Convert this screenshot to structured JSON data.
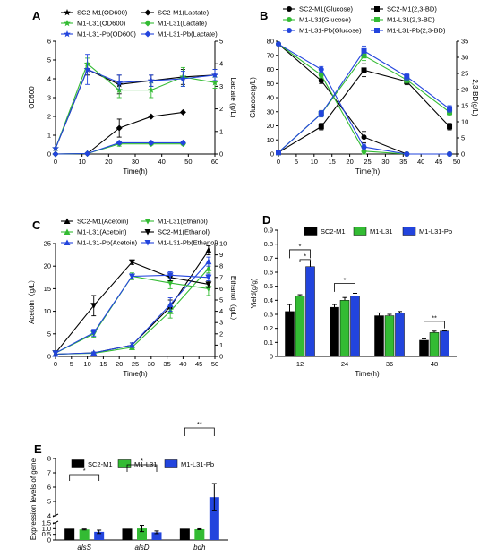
{
  "chart_data": [
    {
      "id": "A",
      "type": "line",
      "letter": "A",
      "xlabel": "Time(h)",
      "ylabel_left": "OD600",
      "ylabel_right": "Lactate (g/L)",
      "xlim": [
        0,
        60
      ],
      "xticks": [
        "0",
        "10",
        "20",
        "30",
        "40",
        "50",
        "60"
      ],
      "ylim_left": [
        0,
        6
      ],
      "yticks_left": [
        "0",
        "1",
        "2",
        "3",
        "4",
        "5",
        "6"
      ],
      "ylim_right": [
        0,
        5
      ],
      "yticks_right": [
        "0",
        "1",
        "2",
        "3",
        "4",
        "5"
      ],
      "series": [
        {
          "name": "SC2-M1(OD600)",
          "axis": "left",
          "color": "#000000",
          "marker": "star",
          "x": [
            0,
            12,
            24,
            36,
            48,
            60
          ],
          "y": [
            0.3,
            4.5,
            3.7,
            3.9,
            4.1,
            4.2
          ],
          "err": [
            0,
            0.3,
            0.5,
            0.3,
            0.4,
            0.3
          ]
        },
        {
          "name": "SC2-M1(Lactate)",
          "axis": "right",
          "color": "#000000",
          "marker": "diamond",
          "x": [
            0,
            12,
            24,
            36,
            48
          ],
          "y": [
            0,
            0.02,
            1.15,
            1.66,
            1.85
          ],
          "err": [
            0,
            0,
            0.4,
            0,
            0
          ]
        },
        {
          "name": "M1-L31(OD600)",
          "axis": "left",
          "color": "#33bb33",
          "marker": "star",
          "x": [
            0,
            12,
            24,
            36,
            48,
            60
          ],
          "y": [
            0.3,
            4.8,
            3.4,
            3.4,
            4.1,
            3.8
          ],
          "err": [
            0,
            0.3,
            0.4,
            0.4,
            0.5,
            0.3
          ]
        },
        {
          "name": "M1-L31(Lactate)",
          "axis": "right",
          "color": "#33bb33",
          "marker": "diamond",
          "x": [
            0,
            12,
            24,
            36,
            48
          ],
          "y": [
            0,
            0.02,
            0.45,
            0.45,
            0.45
          ],
          "err": [
            0,
            0,
            0.1,
            0.05,
            0.05
          ]
        },
        {
          "name": "M1-L31-Pb(OD600)",
          "axis": "left",
          "color": "#2244dd",
          "marker": "star",
          "x": [
            0,
            12,
            24,
            36,
            48,
            60
          ],
          "y": [
            0.3,
            4.5,
            3.8,
            3.9,
            4.0,
            4.2
          ],
          "err": [
            0,
            0.8,
            0.4,
            0.3,
            0.4,
            0.3
          ]
        },
        {
          "name": "M1-L31-Pb(Lactate)",
          "axis": "right",
          "color": "#2244dd",
          "marker": "diamond",
          "x": [
            0,
            12,
            24,
            36,
            48
          ],
          "y": [
            0,
            0.02,
            0.5,
            0.5,
            0.5
          ],
          "err": [
            0,
            0,
            0.05,
            0.05,
            0.05
          ]
        }
      ]
    },
    {
      "id": "B",
      "type": "line",
      "letter": "B",
      "xlabel": "Time(h)",
      "ylabel_left": "Glucose(g/L)",
      "ylabel_right": "2,3-BD(g/L)",
      "xlim": [
        0,
        50
      ],
      "xticks": [
        "0",
        "5",
        "10",
        "15",
        "20",
        "25",
        "30",
        "35",
        "40",
        "45",
        "50"
      ],
      "ylim_left": [
        0,
        80
      ],
      "yticks_left": [
        "0",
        "10",
        "20",
        "30",
        "40",
        "50",
        "60",
        "70",
        "80"
      ],
      "ylim_right": [
        0,
        35
      ],
      "yticks_right": [
        "0",
        "5",
        "10",
        "15",
        "20",
        "25",
        "30",
        "35"
      ],
      "series": [
        {
          "name": "SC2-M1(Glucose)",
          "axis": "left",
          "color": "#000000",
          "marker": "circle",
          "x": [
            0,
            12,
            24,
            36,
            48
          ],
          "y": [
            78,
            52,
            12,
            0,
            0
          ],
          "err": [
            0,
            2,
            4,
            0,
            0
          ]
        },
        {
          "name": "SC2-M1(2,3-BD)",
          "axis": "right",
          "color": "#000000",
          "marker": "square",
          "x": [
            0,
            12,
            24,
            36,
            48
          ],
          "y": [
            0.5,
            8.5,
            26,
            22.5,
            8.5
          ],
          "err": [
            0,
            1,
            2,
            1,
            1
          ]
        },
        {
          "name": "M1-L31(Glucose)",
          "axis": "left",
          "color": "#33bb33",
          "marker": "circle",
          "x": [
            0,
            12,
            24,
            36,
            48
          ],
          "y": [
            78,
            56,
            2,
            0,
            0
          ],
          "err": [
            0,
            2,
            2,
            0,
            0
          ]
        },
        {
          "name": "M1-L31(2,3-BD)",
          "axis": "right",
          "color": "#33bb33",
          "marker": "square",
          "x": [
            0,
            12,
            24,
            36,
            48
          ],
          "y": [
            0.5,
            12.5,
            30.5,
            23,
            13
          ],
          "err": [
            0,
            1,
            1.5,
            1,
            1
          ]
        },
        {
          "name": "M1-L31-Pb(Glucose)",
          "axis": "left",
          "color": "#2244dd",
          "marker": "circle",
          "x": [
            0,
            12,
            24,
            36,
            48
          ],
          "y": [
            78,
            60,
            5,
            0,
            0
          ],
          "err": [
            0,
            2,
            2,
            0,
            0
          ]
        },
        {
          "name": "M1-L31-Pb(2,3-BD)",
          "axis": "right",
          "color": "#2244dd",
          "marker": "square",
          "x": [
            0,
            12,
            24,
            36,
            48
          ],
          "y": [
            0.5,
            12.5,
            32,
            24,
            14
          ],
          "err": [
            0,
            1,
            1.5,
            1,
            1
          ]
        }
      ]
    },
    {
      "id": "C",
      "type": "line",
      "letter": "C",
      "xlabel": "Time(h)",
      "ylabel_left": "Acetoin（g/L）",
      "ylabel_right": "Ethanol（g/L）",
      "xlim": [
        0,
        50
      ],
      "xticks": [
        "0",
        "5",
        "10",
        "15",
        "20",
        "25",
        "30",
        "35",
        "40",
        "45",
        "50"
      ],
      "ylim_left": [
        0,
        25
      ],
      "yticks_left": [
        "0",
        "5",
        "10",
        "15",
        "20",
        "25"
      ],
      "ylim_right": [
        0,
        10
      ],
      "yticks_right": [
        "0",
        "1",
        "2",
        "3",
        "4",
        "5",
        "6",
        "7",
        "8",
        "9",
        "10"
      ],
      "series": [
        {
          "name": "SC2-M1(Acetoin)",
          "axis": "left",
          "color": "#000000",
          "marker": "triangle-up",
          "x": [
            0,
            12,
            24,
            36,
            48
          ],
          "y": [
            0.5,
            0.8,
            2.5,
            11,
            23.5
          ],
          "err": [
            0,
            0.2,
            0.5,
            1.5,
            1
          ]
        },
        {
          "name": "M1-L31(Acetoin)",
          "axis": "left",
          "color": "#33bb33",
          "marker": "triangle-up",
          "x": [
            0,
            12,
            24,
            36,
            48
          ],
          "y": [
            0.5,
            0.7,
            2,
            10,
            19.5
          ],
          "err": [
            0,
            0.2,
            0.5,
            1.5,
            1
          ]
        },
        {
          "name": "M1-L31-Pb(Acetoin)",
          "axis": "left",
          "color": "#2244dd",
          "marker": "triangle-up",
          "x": [
            0,
            12,
            24,
            36,
            48
          ],
          "y": [
            0.5,
            0.8,
            2.5,
            11.5,
            21
          ],
          "err": [
            0,
            0.2,
            0.5,
            1.5,
            1
          ]
        },
        {
          "name": "M1-L31(Ethanol)",
          "axis": "right",
          "color": "#33bb33",
          "marker": "triangle-down",
          "x": [
            0,
            12,
            24,
            36,
            48
          ],
          "y": [
            0.3,
            2,
            7.1,
            6.5,
            6
          ],
          "err": [
            0,
            0.3,
            0.3,
            0.5,
            0.6
          ]
        },
        {
          "name": "SC2-M1(Ethanol)",
          "axis": "right",
          "color": "#000000",
          "marker": "triangle-down",
          "x": [
            0,
            12,
            24,
            36,
            48
          ],
          "y": [
            0.3,
            4.5,
            8.35,
            7,
            6.4
          ],
          "err": [
            0,
            0.9,
            0.2,
            0.3,
            0.3
          ]
        },
        {
          "name": "M1-L31-Pb(Ethanol)",
          "axis": "right",
          "color": "#2244dd",
          "marker": "triangle-down",
          "x": [
            0,
            12,
            24,
            36,
            48
          ],
          "y": [
            0.3,
            2.1,
            7.1,
            7.2,
            7.0
          ],
          "err": [
            0,
            0.3,
            0.2,
            0.3,
            0.3
          ]
        }
      ]
    },
    {
      "id": "D",
      "type": "bar",
      "letter": "D",
      "xlabel": "Time(h)",
      "ylabel": "Yield(g/g)",
      "categories": [
        "12",
        "24",
        "36",
        "48"
      ],
      "ylim": [
        0,
        0.9
      ],
      "yticks": [
        "0",
        "0.1",
        "0.2",
        "0.3",
        "0.4",
        "0.5",
        "0.6",
        "0.7",
        "0.8",
        "0.9"
      ],
      "series": [
        {
          "name": "SC2-M1",
          "color": "#000000",
          "values": [
            0.32,
            0.35,
            0.29,
            0.115
          ],
          "err": [
            0.05,
            0.02,
            0.02,
            0.01
          ]
        },
        {
          "name": "M1-L31",
          "color": "#33bb33",
          "values": [
            0.43,
            0.4,
            0.29,
            0.17
          ],
          "err": [
            0.01,
            0.02,
            0.01,
            0.01
          ]
        },
        {
          "name": "M1-L31-Pb",
          "color": "#2244dd",
          "values": [
            0.64,
            0.43,
            0.31,
            0.18
          ],
          "err": [
            0.04,
            0.02,
            0.01,
            0.005
          ]
        }
      ],
      "annotations": [
        "*",
        "*",
        "*",
        "**"
      ]
    },
    {
      "id": "E",
      "type": "bar",
      "letter": "E",
      "ylabel": "Expression levels of gene",
      "categories": [
        "alsS",
        "alsD",
        "bdh"
      ],
      "yticks": [
        "0",
        "0.5",
        "1.0",
        "1.5",
        "4",
        "5",
        "6",
        "7",
        "8"
      ],
      "series": [
        {
          "name": "SC2-M1",
          "color": "#000000",
          "values": [
            1.0,
            1.0,
            1.0
          ],
          "err": [
            0,
            0,
            0
          ]
        },
        {
          "name": "M1-L31",
          "color": "#33bb33",
          "values": [
            0.93,
            1.02,
            0.95
          ],
          "err": [
            0.04,
            0.28,
            0.04
          ]
        },
        {
          "name": "M1-L31-Pb",
          "color": "#2244dd",
          "values": [
            0.72,
            0.68,
            5.3
          ],
          "err": [
            0.15,
            0.12,
            0.95
          ]
        }
      ],
      "annotations": [
        "*",
        "*",
        "**"
      ]
    }
  ]
}
